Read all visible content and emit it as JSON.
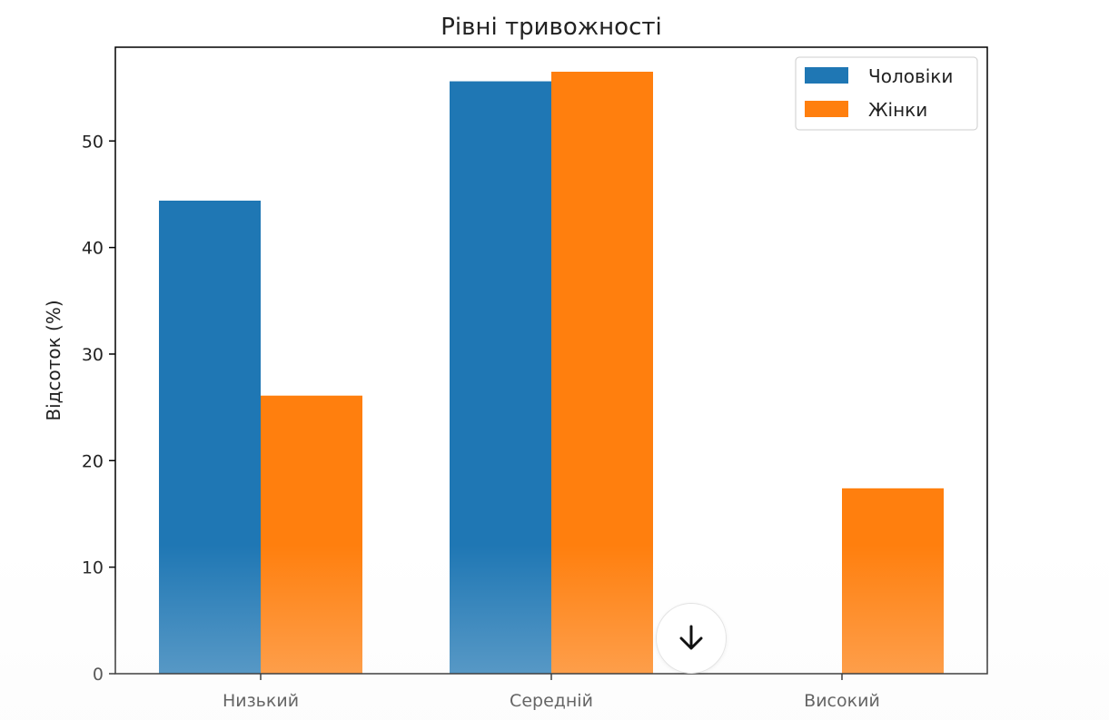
{
  "chart_data": {
    "type": "bar",
    "title": "Рівні тривожності",
    "xlabel": "",
    "ylabel": "Відсоток (%)",
    "categories": [
      "Низький",
      "Середній",
      "Високий"
    ],
    "series": [
      {
        "name": "Чоловіки",
        "values": [
          44.4,
          55.6,
          0
        ],
        "color": "#1f77b4"
      },
      {
        "name": "Жінки",
        "values": [
          26.1,
          56.5,
          17.4
        ],
        "color": "#ff7f0e"
      }
    ],
    "ylim": [
      0,
      58.8
    ],
    "yticks": [
      0,
      10,
      20,
      30,
      40,
      50
    ],
    "grid": false,
    "legend_position": "top-right"
  },
  "overlay": {
    "scroll_button_icon": "arrow-down-icon"
  }
}
